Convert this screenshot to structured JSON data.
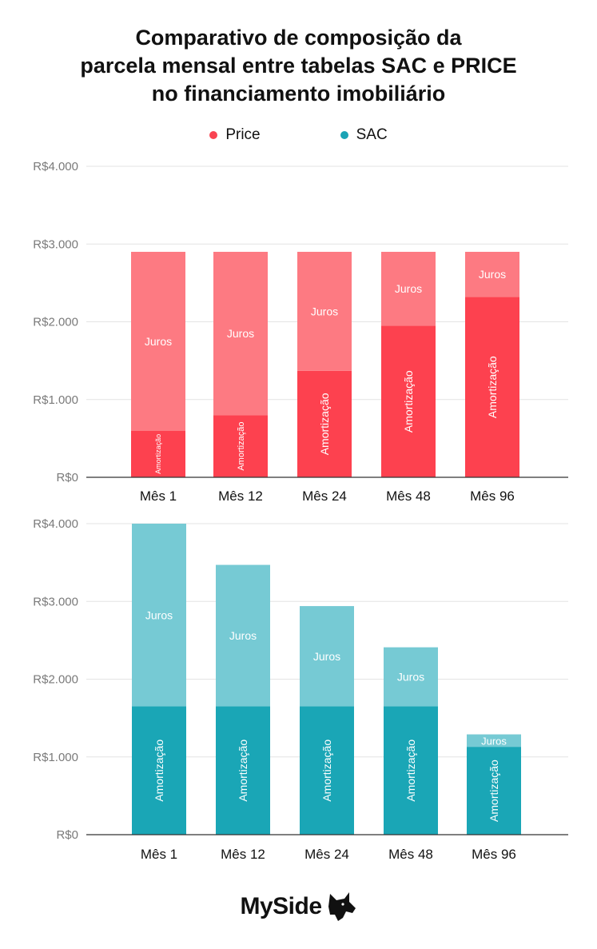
{
  "title": "Comparativo de composição da\nparcela mensal entre tabelas SAC e PRICE\nno financiamento imobiliário",
  "legend": [
    {
      "label": "Price",
      "color": "#f94452"
    },
    {
      "label": "SAC",
      "color": "#1aa3b5"
    }
  ],
  "brand": {
    "name": "MySide"
  },
  "chart_data": [
    {
      "type": "bar",
      "stacked": true,
      "categories": [
        "Mês 1",
        "Mês 12",
        "Mês 24",
        "Mês 48",
        "Mês 96"
      ],
      "series": [
        {
          "name": "Amortização",
          "color": "#fd414f",
          "values": [
            600,
            800,
            1370,
            1950,
            2320
          ]
        },
        {
          "name": "Juros",
          "color": "#fd7a82",
          "values": [
            2300,
            2100,
            1530,
            950,
            580
          ]
        }
      ],
      "ylim": [
        0,
        4000
      ],
      "yticks": [
        0,
        1000,
        2000,
        3000,
        4000
      ],
      "ytick_labels": [
        "R$0",
        "R$1.000",
        "R$2.000",
        "R$3.000",
        "R$4.000"
      ],
      "grid": true
    },
    {
      "type": "bar",
      "stacked": true,
      "categories": [
        "Mês 1",
        "Mês 12",
        "Mês 24",
        "Mês 48",
        "Mês 96"
      ],
      "series": [
        {
          "name": "Amortização",
          "color": "#1aa6b6",
          "values": [
            1650,
            1650,
            1650,
            1650,
            1130
          ]
        },
        {
          "name": "Juros",
          "color": "#76cad4",
          "values": [
            2350,
            1820,
            1290,
            760,
            160
          ]
        }
      ],
      "ylim": [
        0,
        4000
      ],
      "yticks": [
        0,
        1000,
        2000,
        3000,
        4000
      ],
      "ytick_labels": [
        "R$0",
        "R$1.000",
        "R$2.000",
        "R$3.000",
        "R$4.000"
      ],
      "grid": true
    }
  ]
}
